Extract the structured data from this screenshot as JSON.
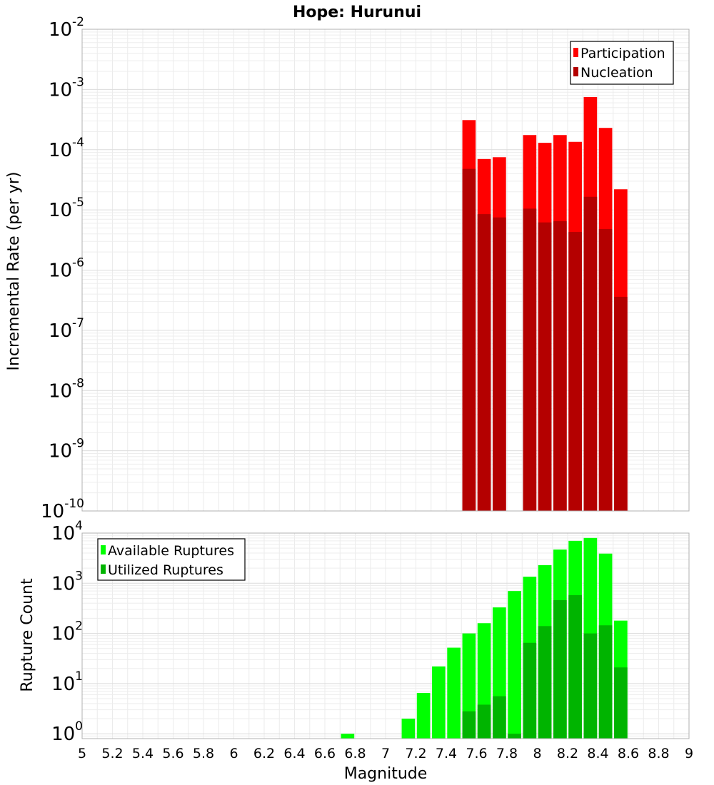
{
  "chart_data": [
    {
      "type": "bar",
      "title": "Hope: Hurunui",
      "ylabel": "Incremental Rate (per yr)",
      "xlabel": "",
      "yscale": "log",
      "xlim": [
        5,
        9
      ],
      "ylim": [
        1e-10,
        0.01
      ],
      "bin_width": 0.1,
      "grid": true,
      "legend_position": "top-right",
      "y_ticks": [
        {
          "mantissa": "10",
          "exp": "-2"
        },
        {
          "mantissa": "10",
          "exp": "-3"
        },
        {
          "mantissa": "10",
          "exp": "-4"
        },
        {
          "mantissa": "10",
          "exp": "-5"
        },
        {
          "mantissa": "10",
          "exp": "-6"
        },
        {
          "mantissa": "10",
          "exp": "-7"
        },
        {
          "mantissa": "10",
          "exp": "-8"
        },
        {
          "mantissa": "10",
          "exp": "-9"
        },
        {
          "mantissa": "10",
          "exp": "-10"
        }
      ],
      "series": [
        {
          "name": "Participation",
          "color": "#ff0000",
          "points": [
            {
              "x": 7.55,
              "y": 0.00031
            },
            {
              "x": 7.65,
              "y": 7e-05
            },
            {
              "x": 7.75,
              "y": 7.5e-05
            },
            {
              "x": 7.95,
              "y": 0.000175
            },
            {
              "x": 8.05,
              "y": 0.00013
            },
            {
              "x": 8.15,
              "y": 0.000175
            },
            {
              "x": 8.25,
              "y": 0.000135
            },
            {
              "x": 8.35,
              "y": 0.00075
            },
            {
              "x": 8.45,
              "y": 0.00023
            },
            {
              "x": 8.55,
              "y": 2.2e-05
            }
          ]
        },
        {
          "name": "Nucleation",
          "color": "#b40000",
          "points": [
            {
              "x": 7.55,
              "y": 4.8e-05
            },
            {
              "x": 7.65,
              "y": 8.5e-06
            },
            {
              "x": 7.75,
              "y": 7.5e-06
            },
            {
              "x": 7.95,
              "y": 1.05e-05
            },
            {
              "x": 8.05,
              "y": 6.2e-06
            },
            {
              "x": 8.15,
              "y": 6.5e-06
            },
            {
              "x": 8.25,
              "y": 4.3e-06
            },
            {
              "x": 8.35,
              "y": 1.65e-05
            },
            {
              "x": 8.45,
              "y": 4.8e-06
            },
            {
              "x": 8.55,
              "y": 3.6e-07
            }
          ]
        }
      ]
    },
    {
      "type": "bar",
      "ylabel": "Rupture Count",
      "xlabel": "Magnitude",
      "yscale": "log",
      "xlim": [
        5,
        9
      ],
      "ylim": [
        0.8,
        10000
      ],
      "bin_width": 0.1,
      "grid": true,
      "legend_position": "top-left",
      "x_ticks": [
        "5",
        "5.2",
        "5.4",
        "5.6",
        "5.8",
        "6",
        "6.2",
        "6.4",
        "6.6",
        "6.8",
        "7",
        "7.2",
        "7.4",
        "7.6",
        "7.8",
        "8",
        "8.2",
        "8.4",
        "8.6",
        "8.8",
        "9"
      ],
      "y_ticks": [
        {
          "mantissa": "10",
          "exp": "4"
        },
        {
          "mantissa": "10",
          "exp": "3"
        },
        {
          "mantissa": "10",
          "exp": "2"
        },
        {
          "mantissa": "10",
          "exp": "1"
        },
        {
          "mantissa": "10",
          "exp": "0"
        }
      ],
      "series": [
        {
          "name": "Available Ruptures",
          "color": "#00ff00",
          "points": [
            {
              "x": 6.75,
              "y": 1
            },
            {
              "x": 7.15,
              "y": 2
            },
            {
              "x": 7.25,
              "y": 6.5
            },
            {
              "x": 7.35,
              "y": 22
            },
            {
              "x": 7.45,
              "y": 52
            },
            {
              "x": 7.55,
              "y": 100
            },
            {
              "x": 7.65,
              "y": 160
            },
            {
              "x": 7.75,
              "y": 330
            },
            {
              "x": 7.85,
              "y": 700
            },
            {
              "x": 7.95,
              "y": 1350
            },
            {
              "x": 8.05,
              "y": 2300
            },
            {
              "x": 8.15,
              "y": 4700
            },
            {
              "x": 8.25,
              "y": 7000
            },
            {
              "x": 8.35,
              "y": 8000
            },
            {
              "x": 8.45,
              "y": 3900
            },
            {
              "x": 8.55,
              "y": 180
            }
          ]
        },
        {
          "name": "Utilized Ruptures",
          "color": "#00b400",
          "points": [
            {
              "x": 7.55,
              "y": 2.8
            },
            {
              "x": 7.65,
              "y": 3.8
            },
            {
              "x": 7.75,
              "y": 5.6
            },
            {
              "x": 7.85,
              "y": 1
            },
            {
              "x": 7.95,
              "y": 65
            },
            {
              "x": 8.05,
              "y": 140
            },
            {
              "x": 8.15,
              "y": 460
            },
            {
              "x": 8.25,
              "y": 580
            },
            {
              "x": 8.35,
              "y": 100
            },
            {
              "x": 8.45,
              "y": 145
            },
            {
              "x": 8.55,
              "y": 21
            }
          ]
        }
      ]
    }
  ]
}
